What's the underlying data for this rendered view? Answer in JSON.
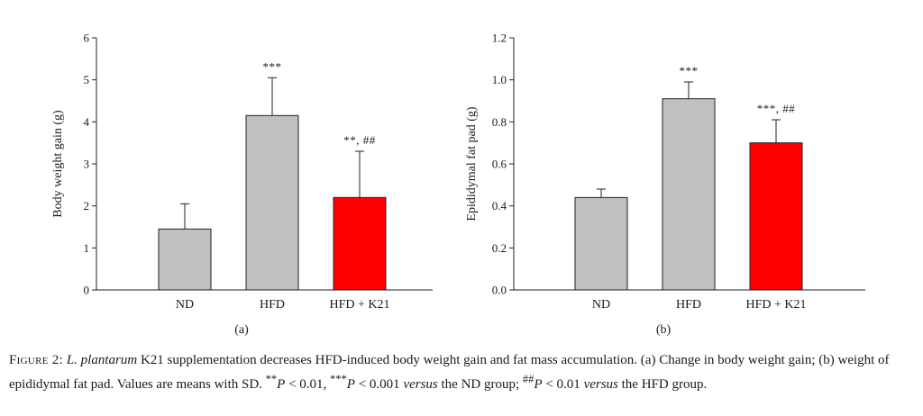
{
  "chart_data": [
    {
      "type": "bar",
      "panel_label": "(a)",
      "ylabel": "Body weight gain (g)",
      "xlabel": "",
      "ylim": [
        0,
        6
      ],
      "yticks": [
        "0",
        "1",
        "2",
        "3",
        "4",
        "5",
        "6"
      ],
      "categories": [
        "ND",
        "HFD",
        "HFD + K21"
      ],
      "values": [
        1.45,
        4.15,
        2.2
      ],
      "errors": [
        0.6,
        0.9,
        1.1
      ],
      "annotations": [
        "",
        "***",
        "**, ##"
      ],
      "bar_colors": [
        "#c0c0c0",
        "#c0c0c0",
        "#ff0000"
      ],
      "grid": false
    },
    {
      "type": "bar",
      "panel_label": "(b)",
      "ylabel": "Epididymal fat pad (g)",
      "xlabel": "",
      "ylim": [
        0,
        1.2
      ],
      "yticks": [
        "0.0",
        "0.2",
        "0.4",
        "0.6",
        "0.8",
        "1.0",
        "1.2"
      ],
      "categories": [
        "ND",
        "HFD",
        "HFD + K21"
      ],
      "values": [
        0.44,
        0.91,
        0.7
      ],
      "errors": [
        0.04,
        0.08,
        0.11
      ],
      "annotations": [
        "",
        "***",
        "***, ##"
      ],
      "bar_colors": [
        "#c0c0c0",
        "#c0c0c0",
        "#ff0000"
      ],
      "grid": false
    }
  ],
  "caption": {
    "prefix": "Figure 2:",
    "species": "L. plantarum",
    "text1": " K21 supplementation decreases HFD-induced body weight gain and fat mass accumulation. (a) Change in body weight gain; (b) weight of epididymal fat pad. Values are means with SD. ",
    "sig1_sup": "**",
    "p1": "P",
    "sig1_rest": " < 0.01, ",
    "sig2_sup": "***",
    "p2": "P",
    "sig2_rest": " < 0.001 ",
    "versus1": "versus",
    "text2": " the ND group; ",
    "sig3_sup": "##",
    "p3": "P",
    "sig3_rest": " < 0.01 ",
    "versus2": "versus",
    "text3": " the HFD group."
  }
}
